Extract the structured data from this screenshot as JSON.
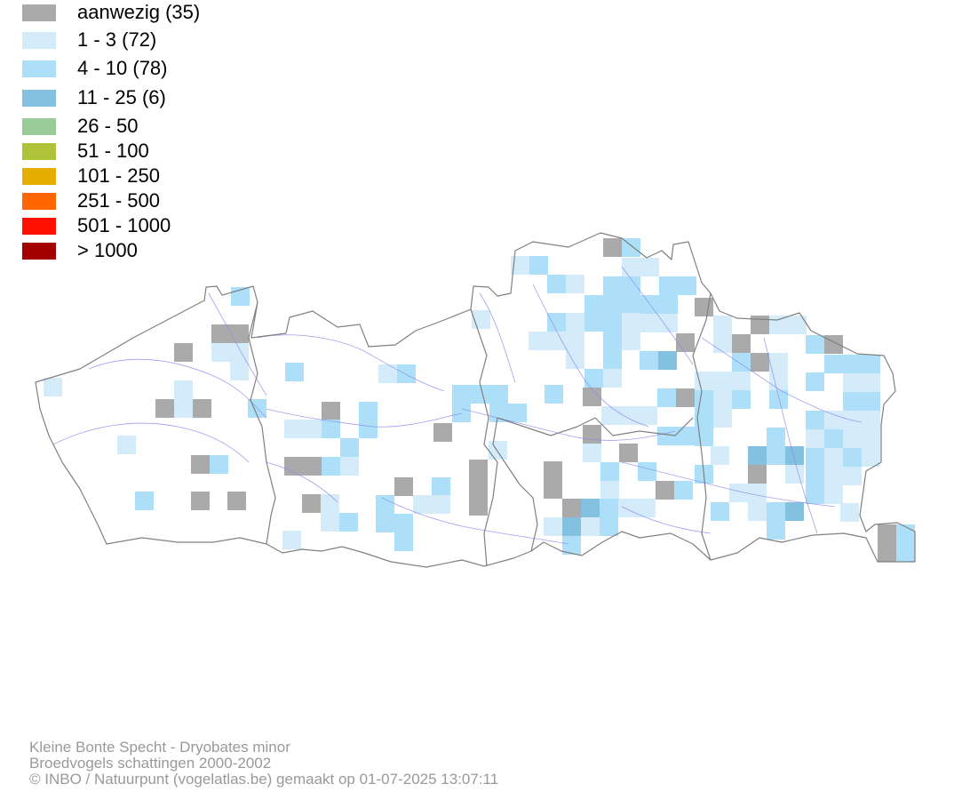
{
  "legend": [
    {
      "label": "aanwezig (35)",
      "color": "#aaaaaa"
    },
    {
      "label": "1 - 3 (72)",
      "color": "#d4ecfa"
    },
    {
      "label": "4 - 10 (78)",
      "color": "#ade0f8"
    },
    {
      "label": "11 - 25 (6)",
      "color": "#82c1e0"
    },
    {
      "label": "26 - 50",
      "color": "#99cc99"
    },
    {
      "label": "51 - 100",
      "color": "#afc33a"
    },
    {
      "label": "101 - 250",
      "color": "#e5ae00"
    },
    {
      "label": "251 - 500",
      "color": "#ff6600"
    },
    {
      "label": "501 - 1000",
      "color": "#ff1100"
    },
    {
      "label": "> 1000",
      "color": "#a50000"
    }
  ],
  "credits": {
    "species": "Kleine Bonte Specht - Dryobates minor",
    "dataset": "Broedvogels schattingen 2000-2002",
    "copyright": "© INBO / Natuurpunt (vogelatlas.be) gemaakt op 01-07-2025 13:07:11"
  },
  "map_colors": {
    "border": "#808080",
    "rivers": "#8888ee",
    "aanwezig": "#aaaaaa",
    "class_1_3": "#d4ecfa",
    "class_4_10": "#ade0f8",
    "class_11_25": "#82c1e0"
  }
}
